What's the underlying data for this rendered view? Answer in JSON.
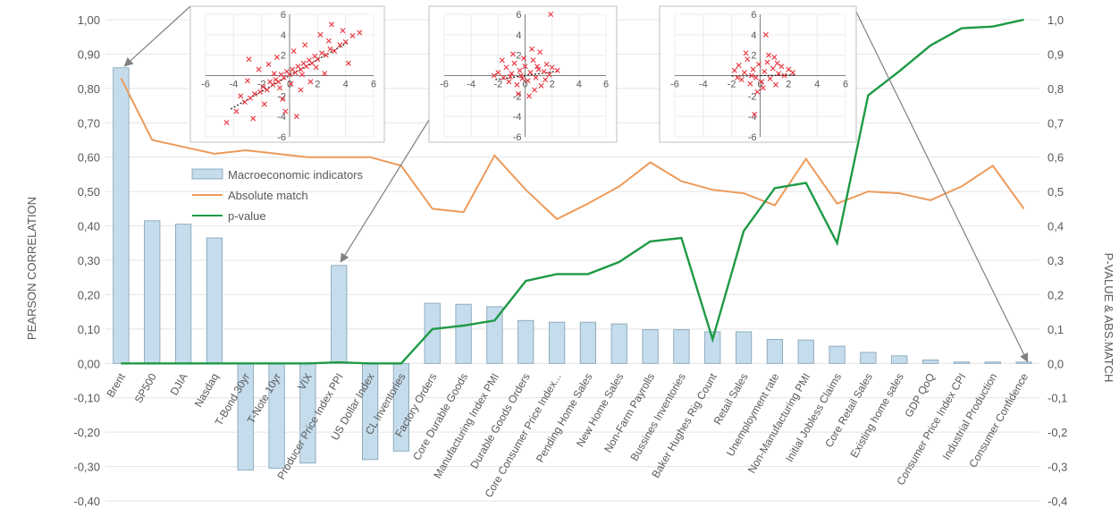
{
  "chart_data": [
    {
      "type": "bar+line",
      "categories": [
        "Brent",
        "SP500",
        "DJIA",
        "Nasdaq",
        "T-Bond 30yr",
        "T-Note 10yr",
        "VIX",
        "Producer Price Index PPI",
        "US Dollar Index",
        "CL Inventories",
        "Factory Orders",
        "Core Durable Goods",
        "Manufacturing Index PMI",
        "Durable Goods Orders",
        "Core Consumer Price Index...",
        "Pending Home Sales",
        "New Home Sales",
        "Non-Farm Payrolls",
        "Bussines Inventories",
        "Baker Hughes Rig Count",
        "Retail Sales",
        "Unemployment rate",
        "Non-Manufacturing PMI",
        "Initial Jobless Claims",
        "Core Retail Sales",
        "Existing home sales",
        "GDP QoQ",
        "Consumer Price Index CPI",
        "Industrial Production",
        "Consumer Confidence"
      ],
      "ylabel": "PEARSON CORRELATION",
      "y2label": "P-VALUE & ABS.MATCH",
      "ylim": [
        -0.4,
        1.0
      ],
      "y2lim": [
        -0.4,
        1.0
      ],
      "yticks": [
        "1,00",
        "0,90",
        "0,80",
        "0,70",
        "0,60",
        "0,50",
        "0,40",
        "0,30",
        "0,20",
        "0,10",
        "0,00",
        "-0,10",
        "-0,20",
        "-0,30",
        "-0,40"
      ],
      "y2ticks": [
        "1,0",
        "0,9",
        "0,8",
        "0,7",
        "0,6",
        "0,5",
        "0,4",
        "0,3",
        "0,2",
        "0,1",
        "0,0",
        "-0,1",
        "-0,2",
        "-0,3",
        "-0,4"
      ],
      "legend_position": "upper-left",
      "series": [
        {
          "name": "Macroeconomic indicators",
          "kind": "bar",
          "axis": "left",
          "color": "#c5dcec",
          "values": [
            0.86,
            0.415,
            0.405,
            0.365,
            -0.31,
            -0.305,
            -0.29,
            0.285,
            -0.28,
            -0.255,
            0.175,
            0.172,
            0.165,
            0.125,
            0.12,
            0.12,
            0.115,
            0.098,
            0.098,
            0.092,
            0.092,
            0.07,
            0.068,
            0.05,
            0.032,
            0.022,
            0.01,
            0.004,
            0.004,
            0.004
          ]
        },
        {
          "name": "Absolute match",
          "kind": "line",
          "axis": "right",
          "color": "#ed9a5a",
          "values": [
            0.83,
            0.65,
            0.63,
            0.61,
            0.62,
            0.61,
            0.6,
            0.6,
            0.6,
            0.575,
            0.45,
            0.44,
            0.605,
            0.505,
            0.42,
            0.465,
            0.515,
            0.585,
            0.53,
            0.505,
            0.495,
            0.46,
            0.595,
            0.465,
            0.5,
            0.495,
            0.475,
            0.515,
            0.575,
            0.45
          ]
        },
        {
          "name": "p-value",
          "kind": "line",
          "axis": "right",
          "color": "#1e9a45",
          "values": [
            0.0,
            0.0,
            0.0,
            0.0,
            0.0,
            0.0,
            0.0,
            0.003,
            0.0,
            0.0,
            0.1,
            0.11,
            0.125,
            0.24,
            0.26,
            0.26,
            0.295,
            0.355,
            0.365,
            0.07,
            0.385,
            0.51,
            0.525,
            0.35,
            0.78,
            0.85,
            0.925,
            0.975,
            0.98,
            1.0
          ]
        }
      ]
    },
    {
      "type": "scatter",
      "xlim": [
        -6,
        6
      ],
      "ylim": [
        -6,
        6
      ],
      "xticks": [
        "-6",
        "-4",
        "-2",
        "0",
        "2",
        "4",
        "6"
      ],
      "yticks": [
        "6",
        "4",
        "2",
        "-2",
        "-4",
        "-6"
      ],
      "marker": "x",
      "color": "#e8323c",
      "points": [
        [
          -3.8,
          -3.5
        ],
        [
          -3.2,
          -2.6
        ],
        [
          -2.8,
          -2.2
        ],
        [
          -2.5,
          -1.8
        ],
        [
          -2.1,
          -1.6
        ],
        [
          -1.9,
          -1.1
        ],
        [
          -1.6,
          -1.4
        ],
        [
          -1.4,
          -0.6
        ],
        [
          -1.2,
          -0.9
        ],
        [
          -1.0,
          -0.4
        ],
        [
          -0.8,
          -0.6
        ],
        [
          -0.6,
          0.1
        ],
        [
          -0.4,
          -0.2
        ],
        [
          -0.2,
          0.4
        ],
        [
          0.0,
          0.1
        ],
        [
          0.2,
          0.6
        ],
        [
          0.4,
          0.3
        ],
        [
          0.6,
          0.9
        ],
        [
          0.8,
          0.6
        ],
        [
          1.0,
          1.2
        ],
        [
          1.2,
          0.9
        ],
        [
          1.4,
          1.5
        ],
        [
          1.6,
          1.2
        ],
        [
          1.8,
          1.9
        ],
        [
          2.0,
          1.6
        ],
        [
          2.3,
          2.2
        ],
        [
          2.6,
          2.0
        ],
        [
          2.9,
          2.6
        ],
        [
          3.2,
          2.4
        ],
        [
          3.6,
          3.0
        ],
        [
          4.0,
          3.3
        ],
        [
          4.5,
          3.9
        ],
        [
          5.0,
          4.2
        ],
        [
          -2.2,
          0.6
        ],
        [
          -1.5,
          1.1
        ],
        [
          -0.9,
          1.8
        ],
        [
          0.3,
          2.4
        ],
        [
          1.1,
          3.0
        ],
        [
          2.2,
          4.0
        ],
        [
          3.0,
          5.0
        ],
        [
          -3.0,
          -0.5
        ],
        [
          -0.5,
          -2.3
        ],
        [
          0.8,
          -1.4
        ],
        [
          1.5,
          -0.6
        ],
        [
          2.5,
          0.2
        ],
        [
          -1.8,
          -2.8
        ],
        [
          -0.3,
          -3.5
        ],
        [
          0.5,
          -4.0
        ],
        [
          -2.6,
          -4.2
        ],
        [
          4.2,
          1.2
        ],
        [
          -4.5,
          -4.6
        ],
        [
          -3.5,
          -2.0
        ],
        [
          -1.1,
          0.2
        ],
        [
          0.9,
          0.1
        ],
        [
          1.9,
          0.8
        ],
        [
          -0.7,
          -1.2
        ],
        [
          0.1,
          -0.8
        ],
        [
          2.8,
          3.4
        ],
        [
          3.8,
          4.4
        ],
        [
          -2.9,
          1.6
        ]
      ]
    },
    {
      "type": "scatter",
      "xlim": [
        -6,
        6
      ],
      "ylim": [
        -6,
        6
      ],
      "xticks": [
        "-6",
        "-4",
        "-2",
        "0",
        "2",
        "4",
        "6"
      ],
      "yticks": [
        "6",
        "4",
        "2",
        "-2",
        "-4",
        "-6"
      ],
      "marker": "x",
      "color": "#e8323c",
      "points": [
        [
          -2.0,
          0.3
        ],
        [
          -1.6,
          -0.2
        ],
        [
          -1.4,
          0.8
        ],
        [
          -1.2,
          -0.6
        ],
        [
          -1.0,
          0.2
        ],
        [
          -0.8,
          1.2
        ],
        [
          -0.6,
          -0.9
        ],
        [
          -0.4,
          0.5
        ],
        [
          -0.2,
          -0.3
        ],
        [
          0.0,
          0.9
        ],
        [
          0.2,
          -0.5
        ],
        [
          0.4,
          0.3
        ],
        [
          0.6,
          1.5
        ],
        [
          0.8,
          -0.2
        ],
        [
          1.0,
          0.6
        ],
        [
          1.2,
          -1.0
        ],
        [
          1.4,
          0.4
        ],
        [
          1.6,
          1.1
        ],
        [
          1.8,
          0.1
        ],
        [
          2.0,
          0.8
        ],
        [
          2.4,
          0.5
        ],
        [
          -0.5,
          -1.8
        ],
        [
          0.3,
          -2.0
        ],
        [
          -0.9,
          2.1
        ],
        [
          0.5,
          2.6
        ],
        [
          1.9,
          6.0
        ],
        [
          1.1,
          2.3
        ],
        [
          -1.7,
          1.5
        ],
        [
          0.7,
          -1.4
        ],
        [
          -0.1,
          1.7
        ],
        [
          -0.3,
          0.0
        ],
        [
          0.9,
          0.9
        ],
        [
          -1.1,
          -0.1
        ],
        [
          1.5,
          -0.4
        ],
        [
          -2.3,
          0.0
        ]
      ]
    },
    {
      "type": "scatter",
      "xlim": [
        -6,
        6
      ],
      "ylim": [
        -6,
        6
      ],
      "xticks": [
        "-6",
        "-4",
        "-2",
        "0",
        "2",
        "4",
        "6"
      ],
      "yticks": [
        "6",
        "4",
        "2",
        "-2",
        "-4",
        "-6"
      ],
      "marker": "x",
      "color": "#e8323c",
      "points": [
        [
          -1.8,
          0.5
        ],
        [
          -1.5,
          1.0
        ],
        [
          -1.3,
          -0.4
        ],
        [
          -1.1,
          0.3
        ],
        [
          -0.9,
          1.6
        ],
        [
          -0.7,
          -0.8
        ],
        [
          -0.5,
          0.6
        ],
        [
          -0.3,
          -0.2
        ],
        [
          -0.1,
          1.1
        ],
        [
          0.1,
          -0.6
        ],
        [
          0.3,
          0.4
        ],
        [
          0.5,
          1.3
        ],
        [
          0.7,
          -0.3
        ],
        [
          0.9,
          0.7
        ],
        [
          1.1,
          -0.9
        ],
        [
          1.3,
          0.2
        ],
        [
          1.5,
          0.9
        ],
        [
          1.7,
          0.0
        ],
        [
          2.0,
          0.6
        ],
        [
          2.3,
          0.3
        ],
        [
          0.4,
          4.0
        ],
        [
          -0.4,
          -3.8
        ],
        [
          -0.2,
          -1.6
        ],
        [
          0.6,
          2.0
        ],
        [
          -1.0,
          2.2
        ],
        [
          1.0,
          1.8
        ],
        [
          -0.6,
          0.0
        ],
        [
          0.2,
          -1.2
        ],
        [
          1.2,
          1.2
        ],
        [
          -1.6,
          -0.2
        ]
      ]
    }
  ]
}
